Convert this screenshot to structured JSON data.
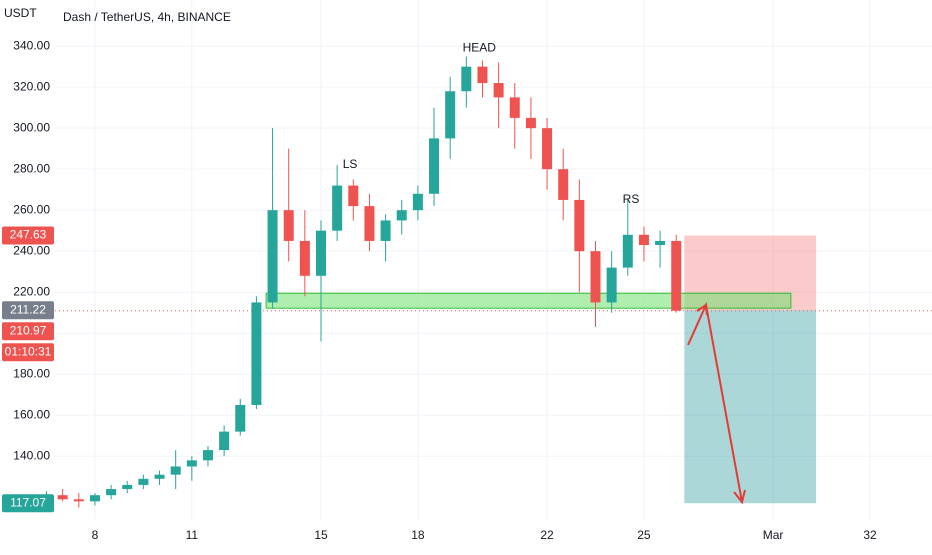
{
  "chart_data": {
    "type": "candlestick",
    "title": "Dash / TetherUS, 4h, BINANCE",
    "y_axis_label": "USDT",
    "up_color": "#26a69a",
    "down_color": "#ef5350",
    "grid": true,
    "ylim": [
      105,
      362.5
    ],
    "yticks": [
      {
        "value": 140,
        "label": "140.00"
      },
      {
        "value": 160,
        "label": "160.00"
      },
      {
        "value": 180,
        "label": "180.00"
      },
      {
        "value": 200,
        "label": "200.00"
      },
      {
        "value": 220,
        "label": "220.00"
      },
      {
        "value": 240,
        "label": "240.00"
      },
      {
        "value": 260,
        "label": "260.00"
      },
      {
        "value": 280,
        "label": "280.00"
      },
      {
        "value": 300,
        "label": "300.00"
      },
      {
        "value": 320,
        "label": "320.00"
      },
      {
        "value": 340,
        "label": "340.00"
      }
    ],
    "xlim": [
      5.06,
      33.92
    ],
    "xticks": [
      8,
      11,
      15,
      18,
      22,
      25,
      {
        "value": 29,
        "label": "Mar"
      },
      32
    ],
    "x": [
      6.5,
      7,
      7.5,
      8,
      8.5,
      9,
      9.5,
      10,
      10.5,
      11,
      11.5,
      12,
      12.5,
      13,
      13.5,
      14,
      14.5,
      15,
      15.5,
      16,
      16.5,
      17,
      17.5,
      18,
      18.5,
      19,
      19.5,
      20,
      20.5,
      21,
      21.5,
      22,
      22.5,
      23,
      23.5,
      24,
      24.5,
      25,
      25.5,
      26
    ],
    "open": [
      120,
      121,
      119,
      118,
      121,
      124,
      126,
      129,
      131,
      135,
      138,
      143,
      152,
      165,
      215,
      260,
      245,
      228,
      250,
      272,
      262,
      245,
      255,
      260,
      268,
      295,
      318,
      330,
      322,
      315,
      305,
      300,
      280,
      265,
      240,
      215,
      232,
      248,
      243,
      245
    ],
    "high": [
      123,
      124,
      122,
      122,
      126,
      128,
      131,
      133,
      143,
      140,
      145,
      155,
      168,
      218,
      300,
      290,
      260,
      255,
      282,
      275,
      268,
      258,
      265,
      272,
      310,
      325,
      335,
      333,
      332,
      322,
      315,
      305,
      290,
      275,
      245,
      240,
      265,
      252,
      250,
      248
    ],
    "low": [
      117,
      118,
      115,
      116,
      119,
      122,
      124,
      126,
      124,
      128,
      135,
      140,
      150,
      163,
      212,
      235,
      218,
      196,
      245,
      255,
      240,
      235,
      248,
      255,
      262,
      285,
      310,
      315,
      300,
      290,
      285,
      270,
      255,
      220,
      203,
      210,
      228,
      235,
      232,
      210
    ],
    "close": [
      121,
      119,
      118,
      121,
      124,
      126,
      129,
      131,
      135,
      138,
      143,
      152,
      165,
      215,
      260,
      245,
      228,
      250,
      272,
      262,
      245,
      255,
      260,
      268,
      295,
      318,
      330,
      322,
      315,
      305,
      300,
      280,
      265,
      240,
      215,
      232,
      248,
      243,
      245,
      210.97
    ],
    "annotations": [
      {
        "text": "LS",
        "x": 15.9,
        "y": 282
      },
      {
        "text": "HEAD",
        "x": 19.9,
        "y": 339
      },
      {
        "text": "RS",
        "x": 24.6,
        "y": 265
      }
    ],
    "zone": {
      "x": [
        13.3,
        29.55
      ],
      "y": [
        212.2,
        219.5
      ],
      "color": "#6fe06f"
    },
    "position": {
      "x": [
        26.25,
        30.33
      ],
      "entry": 211.22,
      "stop": 247.63,
      "target": 117.07
    },
    "current_price": 210.97,
    "countdown": "01:10:31"
  }
}
